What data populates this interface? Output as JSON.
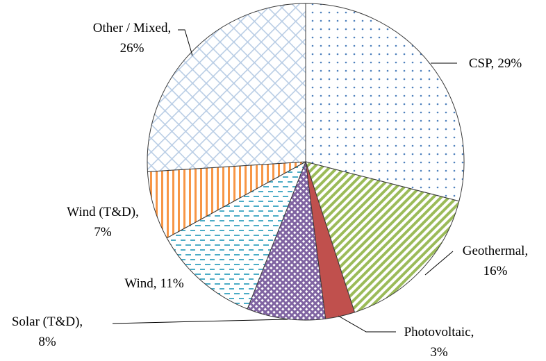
{
  "chart_data": {
    "type": "pie",
    "categories": [
      "CSP,",
      "Geothermal,",
      "Photovoltaic,",
      "Solar (T&D),",
      "Wind,",
      "Wind (T&D),",
      "Other / Mixed,"
    ],
    "values": [
      29,
      16,
      3,
      8,
      11,
      7,
      26
    ],
    "value_labels": [
      "29%",
      "16%",
      "3%",
      "8%",
      "11%",
      "7%",
      "26%"
    ],
    "colors": [
      "#4f81bd",
      "#9bbb59",
      "#c0504d",
      "#8064a2",
      "#4bacc6",
      "#f79646",
      "#b9cde5"
    ],
    "patterns": [
      "dots",
      "diagonal",
      "solid",
      "crosshatch",
      "dashes",
      "vertical",
      "diamond"
    ]
  }
}
